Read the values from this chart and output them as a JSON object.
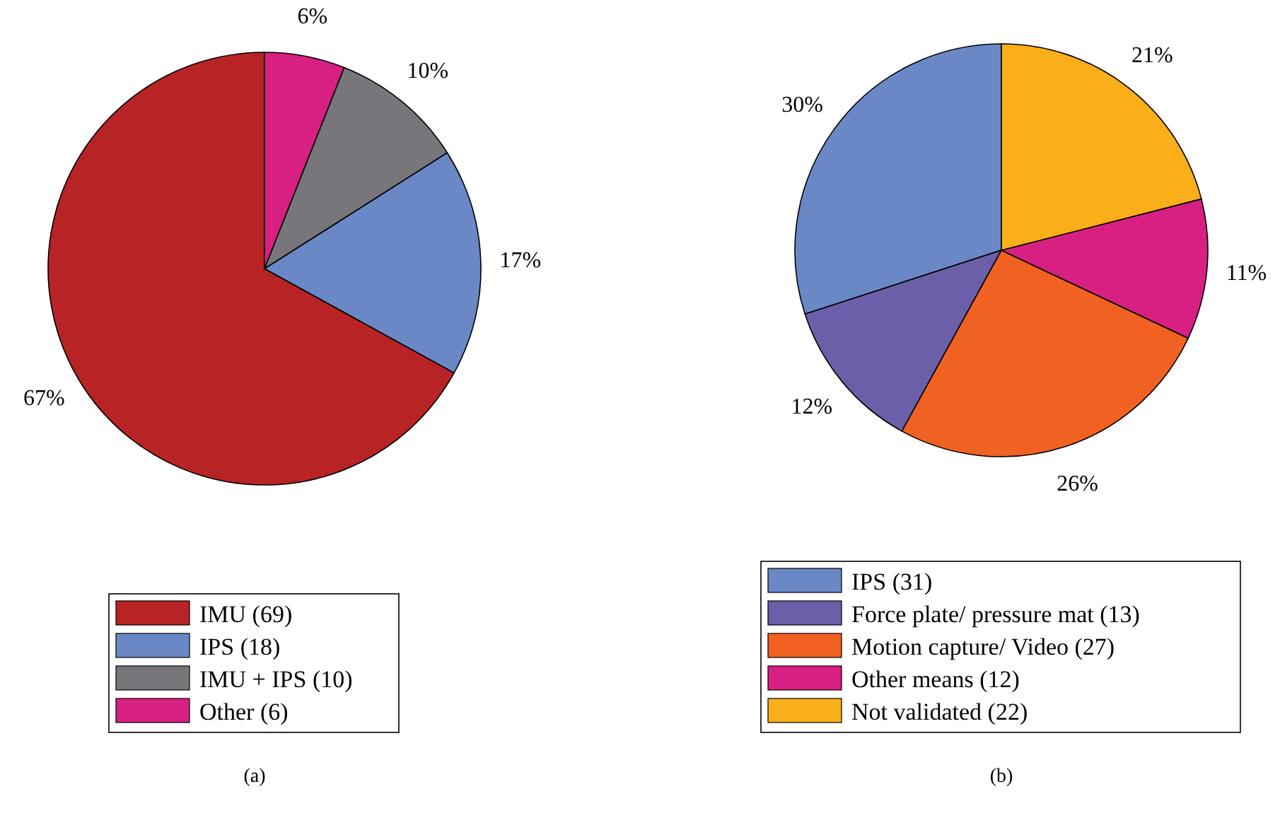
{
  "chart_data": [
    {
      "type": "pie",
      "categories": [
        "IMU (69)",
        "IPS (18)",
        "IMU + IPS (10)",
        "Other (6)"
      ],
      "values": [
        67,
        17,
        10,
        6
      ],
      "value_labels": [
        "67%",
        "17%",
        "10%",
        "6%"
      ],
      "colors": [
        "#b82325",
        "#6b88c6",
        "#77777b",
        "#d81f82"
      ],
      "legend": "bottom",
      "annotations": [
        "(a)"
      ]
    },
    {
      "type": "pie",
      "categories": [
        "IPS (31)",
        "Force plate/ pressure mat (13)",
        "Motion capture/ Video (27)",
        "Other means (12)",
        "Not validated (22)"
      ],
      "values": [
        30,
        12,
        26,
        11,
        21
      ],
      "value_labels": [
        "30%",
        "12%",
        "26%",
        "11%",
        "21%"
      ],
      "colors": [
        "#6b88c6",
        "#6a5fa8",
        "#f06122",
        "#d81f82",
        "#f9ae1a"
      ],
      "legend": "bottom",
      "annotations": [
        "(b)"
      ]
    }
  ]
}
